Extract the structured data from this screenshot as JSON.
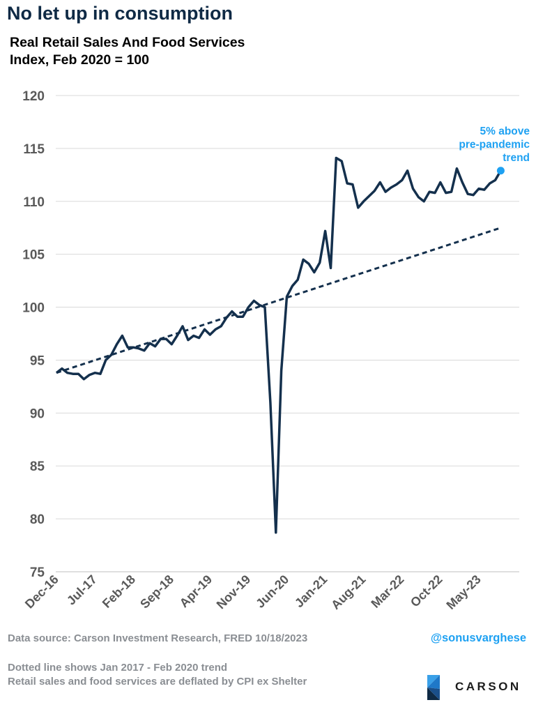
{
  "header": {
    "title": "No let up in consumption",
    "subtitle_line1": "Real Retail Sales And Food Services",
    "subtitle_line2": "Index, Feb 2020 = 100"
  },
  "footer": {
    "source": "Data source: Carson Investment Research, FRED   10/18/2023",
    "handle": "@sonusvarghese",
    "note1": "Dotted line shows Jan 2017 - Feb 2020 trend",
    "note2": "Retail sales and food services are deflated by CPI ex Shelter"
  },
  "logo": {
    "text": "CARSON"
  },
  "colors": {
    "line": "#14304d",
    "trend": "#14304d",
    "marker": "#1ea1f2",
    "annotation": "#1ea1f2",
    "grid": "#d9d9d9",
    "axis_text": "#595959"
  },
  "chart_data": {
    "type": "line",
    "ylim": [
      75,
      120
    ],
    "yticks": [
      75,
      80,
      85,
      90,
      95,
      100,
      105,
      110,
      115,
      120
    ],
    "xtick_labels": [
      "Dec-16",
      "Jul-17",
      "Feb-18",
      "Sep-18",
      "Apr-19",
      "Nov-19",
      "Jun-20",
      "Jan-21",
      "Aug-21",
      "Mar-22",
      "Oct-22",
      "May-23"
    ],
    "x_start": "Dec-16",
    "x_end": "Sep-23",
    "grid": "horizontal",
    "series": [
      {
        "values": [
          93.8,
          94.2,
          93.8,
          93.7,
          93.7,
          93.2,
          93.6,
          93.8,
          93.7,
          95.0,
          95.5,
          96.5,
          97.3,
          96.2,
          96.2,
          96.1,
          95.9,
          96.6,
          96.3,
          97.0,
          97.0,
          96.5,
          97.3,
          98.2,
          96.9,
          97.3,
          97.1,
          97.9,
          97.4,
          97.9,
          98.2,
          99.0,
          99.6,
          99.1,
          99.1,
          100.0,
          100.6,
          100.2,
          100.0,
          91.0,
          78.7,
          94.0,
          101.0,
          102.0,
          102.6,
          104.5,
          104.1,
          103.3,
          104.2,
          107.2,
          103.7,
          114.1,
          113.8,
          111.7,
          111.6,
          109.4,
          110.0,
          110.5,
          111.0,
          111.8,
          110.9,
          111.3,
          111.6,
          112.0,
          112.9,
          111.2,
          110.4,
          110.0,
          110.9,
          110.8,
          111.8,
          110.8,
          110.9,
          113.1,
          111.8,
          110.7,
          110.6,
          111.2,
          111.1,
          111.7,
          112.0,
          112.9
        ]
      }
    ],
    "trend": {
      "start_value": 93.8,
      "end_value": 107.5,
      "label_period": "Jan 2017 - Feb 2020"
    },
    "annotation": {
      "line1": "5% above",
      "line2": "pre-pandemic",
      "line3": "trend"
    }
  }
}
